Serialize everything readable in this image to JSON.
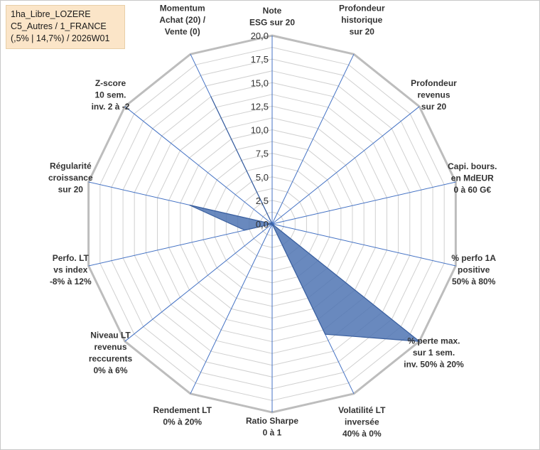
{
  "title_lines": [
    "1ha_Libre_LOZERE",
    "C5_Autres / 1_FRANCE",
    "(,5% | 14,7%) / 2026W01"
  ],
  "chart_data": {
    "type": "radar",
    "r_ticks": [
      "0,0",
      "2,5",
      "5,0",
      "7,5",
      "10,0",
      "12,5",
      "15,0",
      "17,5",
      "20,0"
    ],
    "r_range": [
      0,
      20
    ],
    "grid_rings": 16,
    "axes": [
      {
        "label": [
          "Note",
          "ESG sur 20"
        ],
        "value": 0
      },
      {
        "label": [
          "Profondeur",
          "historique",
          "sur 20"
        ],
        "value": 0
      },
      {
        "label": [
          "Profondeur",
          "revenus",
          "sur 20"
        ],
        "value": 0
      },
      {
        "label": [
          "Capi. bours.",
          "en MdEUR",
          "0 à 60 G€"
        ],
        "value": 0
      },
      {
        "label": [
          "% perfo 1A",
          "positive",
          "50% à 80%"
        ],
        "value": 0
      },
      {
        "label": [
          "% perte max.",
          "sur 1 sem.",
          "inv. 50% à 20%"
        ],
        "value": 20
      },
      {
        "label": [
          "Volatilité LT",
          "inversée",
          "40% à 0%"
        ],
        "value": 13
      },
      {
        "label": [
          "Ratio Sharpe",
          "0 à 1"
        ],
        "value": 0
      },
      {
        "label": [
          "Rendement LT",
          "0% à 20%"
        ],
        "value": 0
      },
      {
        "label": [
          "Niveau LT",
          "revenus",
          "reccurents",
          "0% à 6%"
        ],
        "value": 0
      },
      {
        "label": [
          "Perfo. LT",
          "vs index",
          "-8% à 12%"
        ],
        "value": 3
      },
      {
        "label": [
          "Régularité",
          "croissance",
          "sur 20"
        ],
        "value": 9
      },
      {
        "label": [
          "Z-score",
          "10 sem.",
          "inv. 2 à -2"
        ],
        "value": 0
      },
      {
        "label": [
          "Momentum",
          "Achat (20) /",
          "Vente (0)"
        ],
        "value": 15
      }
    ],
    "fill_color": "#4f74b3",
    "grid_color": "#d0d0d0",
    "spoke_color": "#4472c4"
  }
}
